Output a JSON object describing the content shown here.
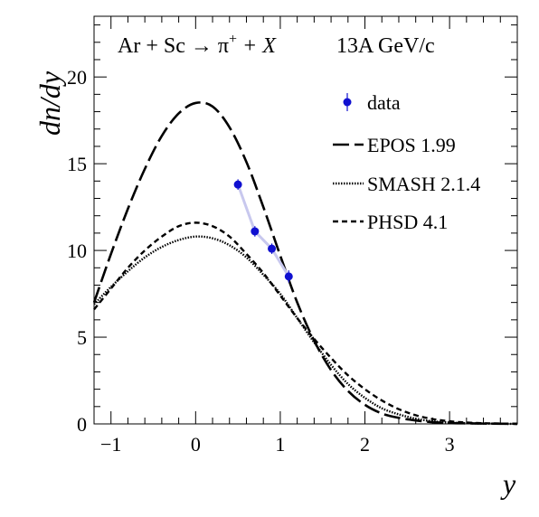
{
  "chart_data": {
    "type": "line",
    "title": "",
    "annotation_left": "Ar + Sc → π",
    "annotation_left_sup": "+",
    "annotation_left_end": " + X",
    "annotation_right": "13A GeV/c",
    "xlabel": "y",
    "ylabel": "dn/dy",
    "xlim": [
      -1.2,
      3.8
    ],
    "ylim": [
      0,
      23.5
    ],
    "x_ticks": [
      -1,
      0,
      1,
      2,
      3
    ],
    "y_ticks": [
      0,
      5,
      10,
      15,
      20
    ],
    "x_tick_labels": [
      "−1",
      "0",
      "1",
      "2",
      "3"
    ],
    "y_tick_labels": [
      "0",
      "5",
      "10",
      "15",
      "20"
    ],
    "grid": false,
    "legend_position": "top-right",
    "legend": [
      {
        "label": "data",
        "style": "marker"
      },
      {
        "label": "EPOS 1.99",
        "style": "long-dash"
      },
      {
        "label": "SMASH 2.1.4",
        "style": "dotted"
      },
      {
        "label": "PHSD 4.1",
        "style": "short-dash"
      }
    ],
    "series": [
      {
        "name": "data",
        "color": "#1010d0",
        "x": [
          0.5,
          0.7,
          0.9,
          1.1
        ],
        "y": [
          13.8,
          11.1,
          10.1,
          8.5
        ],
        "y_err": [
          0.3,
          0.3,
          0.3,
          0.35
        ]
      },
      {
        "name": "EPOS 1.99",
        "color": "#000000",
        "x": [
          -1.2,
          -1.0,
          -0.8,
          -0.6,
          -0.4,
          -0.2,
          0.0,
          0.2,
          0.4,
          0.6,
          0.8,
          1.0,
          1.2,
          1.4,
          1.6,
          1.8,
          2.0,
          2.2,
          2.4,
          2.6,
          2.8,
          3.0,
          3.2,
          3.4,
          3.6,
          3.8
        ],
        "y": [
          7.0,
          9.8,
          12.4,
          14.7,
          16.6,
          17.9,
          18.5,
          18.3,
          17.1,
          15.1,
          12.5,
          9.7,
          7.0,
          4.8,
          3.1,
          1.9,
          1.1,
          0.6,
          0.35,
          0.2,
          0.1,
          0.05,
          0.03,
          0.02,
          0.01,
          0.0
        ]
      },
      {
        "name": "SMASH 2.1.4",
        "color": "#000000",
        "x": [
          -1.2,
          -1.0,
          -0.8,
          -0.6,
          -0.4,
          -0.2,
          0.0,
          0.2,
          0.4,
          0.6,
          0.8,
          1.0,
          1.2,
          1.4,
          1.6,
          1.8,
          2.0,
          2.2,
          2.4,
          2.6,
          2.8,
          3.0,
          3.2,
          3.4,
          3.6,
          3.8
        ],
        "y": [
          6.9,
          7.9,
          8.8,
          9.6,
          10.2,
          10.6,
          10.8,
          10.7,
          10.3,
          9.6,
          8.6,
          7.5,
          6.1,
          4.7,
          3.4,
          2.3,
          1.5,
          0.9,
          0.55,
          0.3,
          0.15,
          0.08,
          0.04,
          0.02,
          0.01,
          0.0
        ]
      },
      {
        "name": "PHSD 4.1",
        "color": "#000000",
        "x": [
          -1.2,
          -1.0,
          -0.8,
          -0.6,
          -0.4,
          -0.2,
          0.0,
          0.2,
          0.4,
          0.6,
          0.8,
          1.0,
          1.2,
          1.4,
          1.6,
          1.8,
          2.0,
          2.2,
          2.4,
          2.6,
          2.8,
          3.0,
          3.2,
          3.4,
          3.6,
          3.8
        ],
        "y": [
          6.6,
          7.8,
          9.0,
          10.0,
          10.8,
          11.4,
          11.6,
          11.4,
          10.8,
          9.8,
          8.7,
          7.4,
          6.1,
          4.9,
          3.8,
          2.8,
          2.0,
          1.35,
          0.85,
          0.5,
          0.28,
          0.15,
          0.08,
          0.04,
          0.02,
          0.01
        ]
      }
    ]
  }
}
